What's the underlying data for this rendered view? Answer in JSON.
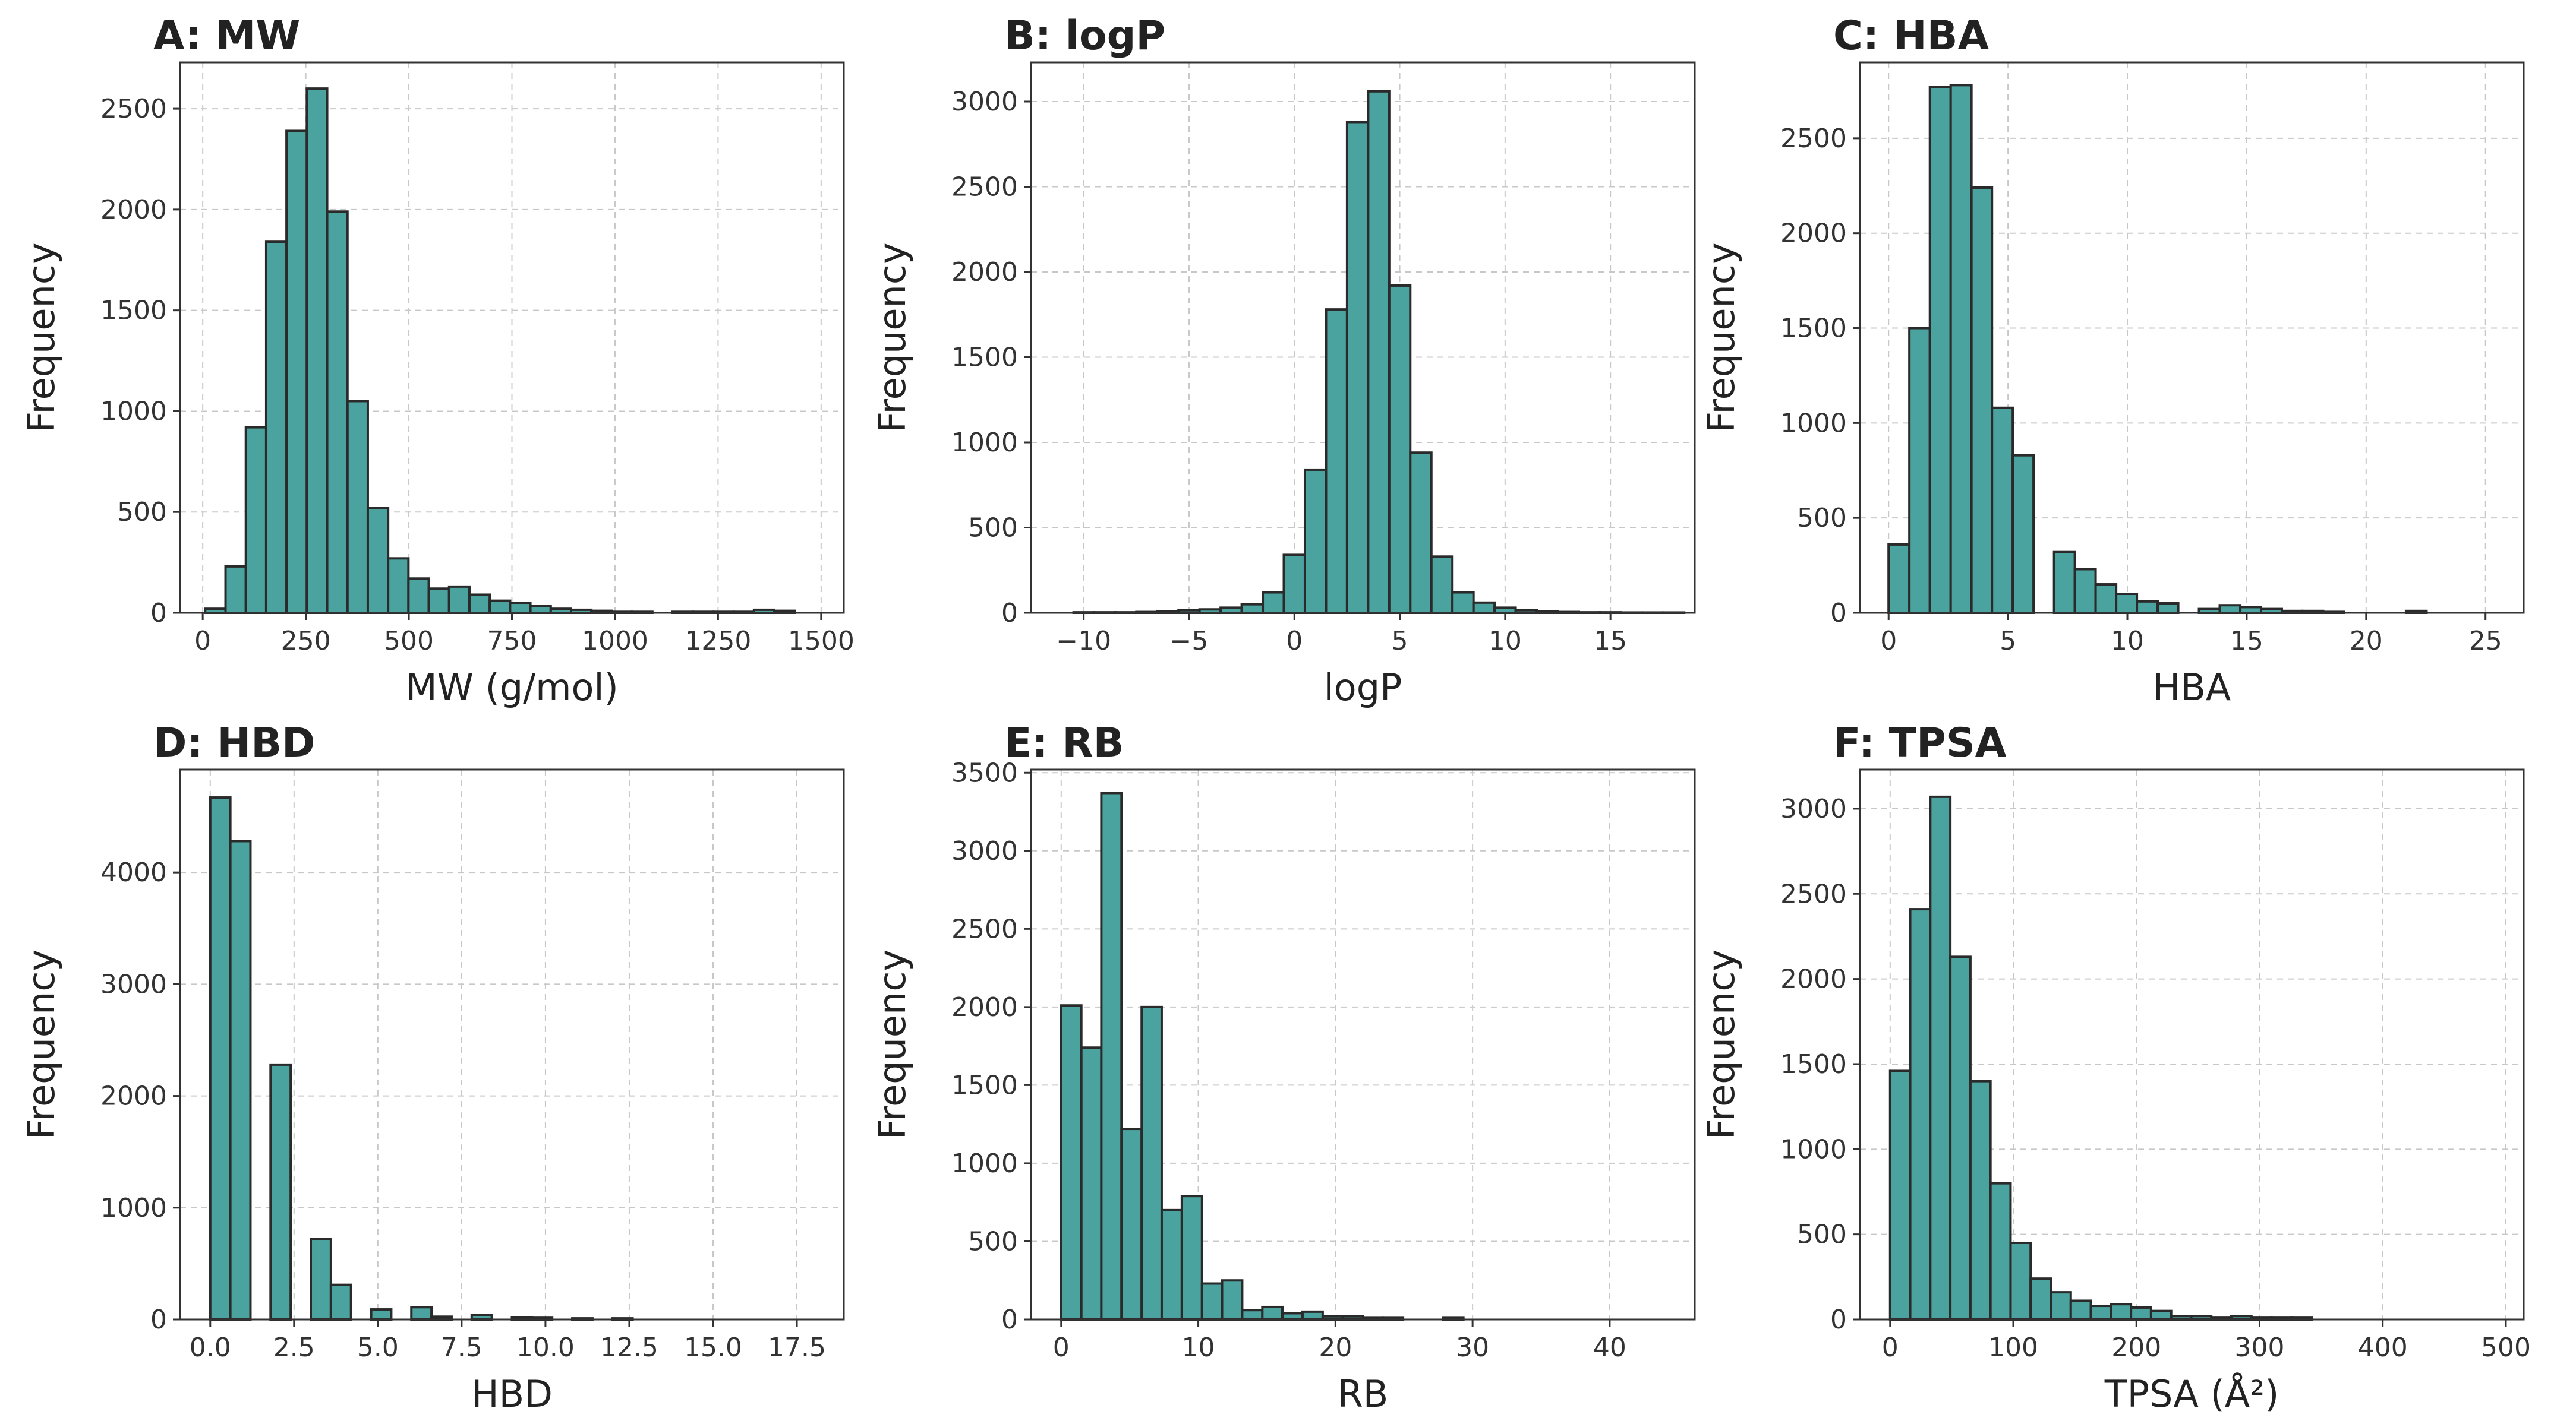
{
  "chart_data": [
    {
      "type": "bar",
      "title": "A: MW",
      "xlabel": "MW (g/mol)",
      "ylabel": "Frequency",
      "xlim": [
        -55,
        1555
      ],
      "ylim": [
        0,
        2730
      ],
      "xticks": [
        0,
        250,
        500,
        750,
        1000,
        1250,
        1500
      ],
      "xtick_labels": [
        "0",
        "250",
        "500",
        "750",
        "1000",
        "1250",
        "1500"
      ],
      "yticks": [
        0,
        500,
        1000,
        1500,
        2000,
        2500
      ],
      "ytick_labels": [
        "0",
        "500",
        "1000",
        "1500",
        "2000",
        "2500"
      ],
      "bin_edges": [
        6.0,
        55.3,
        104.6,
        153.9,
        203.2,
        252.5,
        301.8,
        351.1,
        400.4,
        449.7,
        499.0,
        548.3,
        597.6,
        646.9,
        696.2,
        745.5,
        794.8,
        844.1,
        893.4,
        942.7,
        992.0,
        1041.3,
        1090.6,
        1139.9,
        1189.2,
        1238.5,
        1287.8,
        1337.1,
        1386.4,
        1435.7,
        1485.0
      ],
      "values": [
        20,
        230,
        920,
        1840,
        2390,
        2600,
        1990,
        1050,
        520,
        270,
        170,
        120,
        130,
        90,
        60,
        50,
        35,
        20,
        15,
        10,
        5,
        5,
        0,
        5,
        5,
        5,
        5,
        15,
        10,
        0
      ]
    },
    {
      "type": "bar",
      "title": "B: logP",
      "xlabel": "logP",
      "ylabel": "Frequency",
      "xlim": [
        -12.5,
        19.0
      ],
      "ylim": [
        0,
        3230
      ],
      "xticks": [
        -10,
        -5,
        0,
        5,
        10,
        15
      ],
      "xtick_labels": [
        "−10",
        "−5",
        "0",
        "5",
        "10",
        "15"
      ],
      "yticks": [
        0,
        500,
        1000,
        1500,
        2000,
        2500,
        3000
      ],
      "ytick_labels": [
        "0",
        "500",
        "1000",
        "1500",
        "2000",
        "2500",
        "3000"
      ],
      "bin_edges": [
        -10.48,
        -9.5,
        -8.5,
        -7.5,
        -6.5,
        -5.5,
        -4.5,
        -3.5,
        -2.5,
        -1.5,
        -0.5,
        0.5,
        1.5,
        2.5,
        3.5,
        4.5,
        5.5,
        6.5,
        7.5,
        8.5,
        9.5,
        10.5,
        11.5,
        12.5,
        13.5,
        14.5,
        15.5,
        16.5,
        17.5,
        18.5
      ],
      "values": [
        3,
        3,
        3,
        5,
        10,
        15,
        20,
        30,
        50,
        120,
        340,
        840,
        1780,
        2880,
        3060,
        1920,
        940,
        330,
        120,
        60,
        30,
        15,
        8,
        5,
        3,
        3,
        2,
        2,
        2
      ]
    },
    {
      "type": "bar",
      "title": "C: HBA",
      "xlabel": "HBA",
      "ylabel": "Frequency",
      "xlim": [
        -1.2,
        26.6
      ],
      "ylim": [
        0,
        2900
      ],
      "xticks": [
        0,
        5,
        10,
        15,
        20,
        25
      ],
      "xtick_labels": [
        "0",
        "5",
        "10",
        "15",
        "20",
        "25"
      ],
      "yticks": [
        0,
        500,
        1000,
        1500,
        2000,
        2500
      ],
      "ytick_labels": [
        "0",
        "500",
        "1000",
        "1500",
        "2000",
        "2500"
      ],
      "bin_edges": [
        0.0,
        0.87,
        1.73,
        2.6,
        3.47,
        4.33,
        5.2,
        6.07,
        6.93,
        7.8,
        8.67,
        9.53,
        10.4,
        11.27,
        12.13,
        13.0,
        13.87,
        14.73,
        15.6,
        16.47,
        17.33,
        18.2,
        19.07,
        19.93,
        20.8,
        21.67,
        22.53,
        23.4,
        24.27,
        25.13,
        26.0
      ],
      "values": [
        360,
        1500,
        2770,
        2780,
        2240,
        1080,
        830,
        0,
        320,
        230,
        150,
        100,
        60,
        50,
        0,
        20,
        40,
        30,
        20,
        10,
        10,
        5,
        0,
        0,
        0,
        10,
        0,
        0,
        0,
        0
      ]
    },
    {
      "type": "bar",
      "title": "D: HBD",
      "xlabel": "HBD",
      "ylabel": "Frequency",
      "xlim": [
        -0.9,
        18.9
      ],
      "ylim": [
        0,
        4920
      ],
      "xticks": [
        0.0,
        2.5,
        5.0,
        7.5,
        10.0,
        12.5,
        15.0,
        17.5
      ],
      "xtick_labels": [
        "0.0",
        "2.5",
        "5.0",
        "7.5",
        "10.0",
        "12.5",
        "15.0",
        "17.5"
      ],
      "yticks": [
        0,
        1000,
        2000,
        3000,
        4000
      ],
      "ytick_labels": [
        "0",
        "1000",
        "2000",
        "3000",
        "4000"
      ],
      "bin_edges": [
        0.0,
        0.6,
        1.2,
        1.8,
        2.4,
        3.0,
        3.6,
        4.2,
        4.8,
        5.4,
        6.0,
        6.6,
        7.2,
        7.8,
        8.4,
        9.0,
        9.6,
        10.2,
        10.8,
        11.4,
        12.0,
        12.6,
        13.2,
        13.8,
        14.4,
        15.0,
        15.6,
        16.2,
        16.8,
        17.4,
        18.0
      ],
      "values": [
        4670,
        4280,
        0,
        2280,
        0,
        720,
        310,
        0,
        90,
        0,
        110,
        25,
        0,
        40,
        0,
        20,
        15,
        0,
        10,
        0,
        10,
        0,
        0,
        0,
        0,
        0,
        0,
        0,
        0,
        0
      ]
    },
    {
      "type": "bar",
      "title": "E: RB",
      "xlabel": "RB",
      "ylabel": "Frequency",
      "xlim": [
        -2.2,
        46.2
      ],
      "ylim": [
        0,
        3520
      ],
      "xticks": [
        0,
        10,
        20,
        30,
        40
      ],
      "xtick_labels": [
        "0",
        "10",
        "20",
        "30",
        "40"
      ],
      "yticks": [
        0,
        500,
        1000,
        1500,
        2000,
        2500,
        3000,
        3500
      ],
      "ytick_labels": [
        "0",
        "500",
        "1000",
        "1500",
        "2000",
        "2500",
        "3000",
        "3500"
      ],
      "bin_edges": [
        0.0,
        1.47,
        2.93,
        4.4,
        5.87,
        7.33,
        8.8,
        10.27,
        11.73,
        13.2,
        14.67,
        16.13,
        17.6,
        19.07,
        20.53,
        22.0,
        23.47,
        24.93,
        26.4,
        27.87,
        29.33,
        30.8,
        32.27,
        33.73,
        35.2,
        36.67,
        38.13,
        39.6,
        41.07,
        42.53,
        44.0
      ],
      "values": [
        2010,
        1740,
        3370,
        1220,
        2000,
        700,
        790,
        230,
        250,
        60,
        80,
        40,
        50,
        20,
        20,
        10,
        10,
        0,
        0,
        10,
        0,
        0,
        0,
        0,
        0,
        0,
        0,
        0,
        0,
        0
      ]
    },
    {
      "type": "bar",
      "title": "F: TPSA",
      "xlabel": "TPSA (Å²)",
      "ylabel": "Frequency",
      "xlim": [
        -24.5,
        514.5
      ],
      "ylim": [
        0,
        3230
      ],
      "xticks": [
        0,
        100,
        200,
        300,
        400,
        500
      ],
      "xtick_labels": [
        "0",
        "100",
        "200",
        "300",
        "400",
        "500"
      ],
      "yticks": [
        0,
        500,
        1000,
        1500,
        2000,
        2500,
        3000
      ],
      "ytick_labels": [
        "0",
        "500",
        "1000",
        "1500",
        "2000",
        "2500",
        "3000"
      ],
      "bin_edges": [
        0.0,
        16.3,
        32.6,
        48.9,
        65.2,
        81.5,
        97.8,
        114.1,
        130.4,
        146.7,
        163.0,
        179.3,
        195.6,
        211.9,
        228.2,
        244.5,
        260.8,
        277.1,
        293.4,
        309.7,
        326.0,
        342.3,
        358.6,
        374.9,
        391.2,
        407.5,
        423.8,
        440.1,
        456.4,
        472.7,
        489.0
      ],
      "values": [
        1460,
        2410,
        3070,
        2130,
        1400,
        800,
        450,
        240,
        160,
        110,
        80,
        90,
        70,
        50,
        20,
        20,
        10,
        20,
        10,
        10,
        10,
        0,
        0,
        0,
        0,
        0,
        0,
        0,
        0,
        0
      ]
    }
  ]
}
